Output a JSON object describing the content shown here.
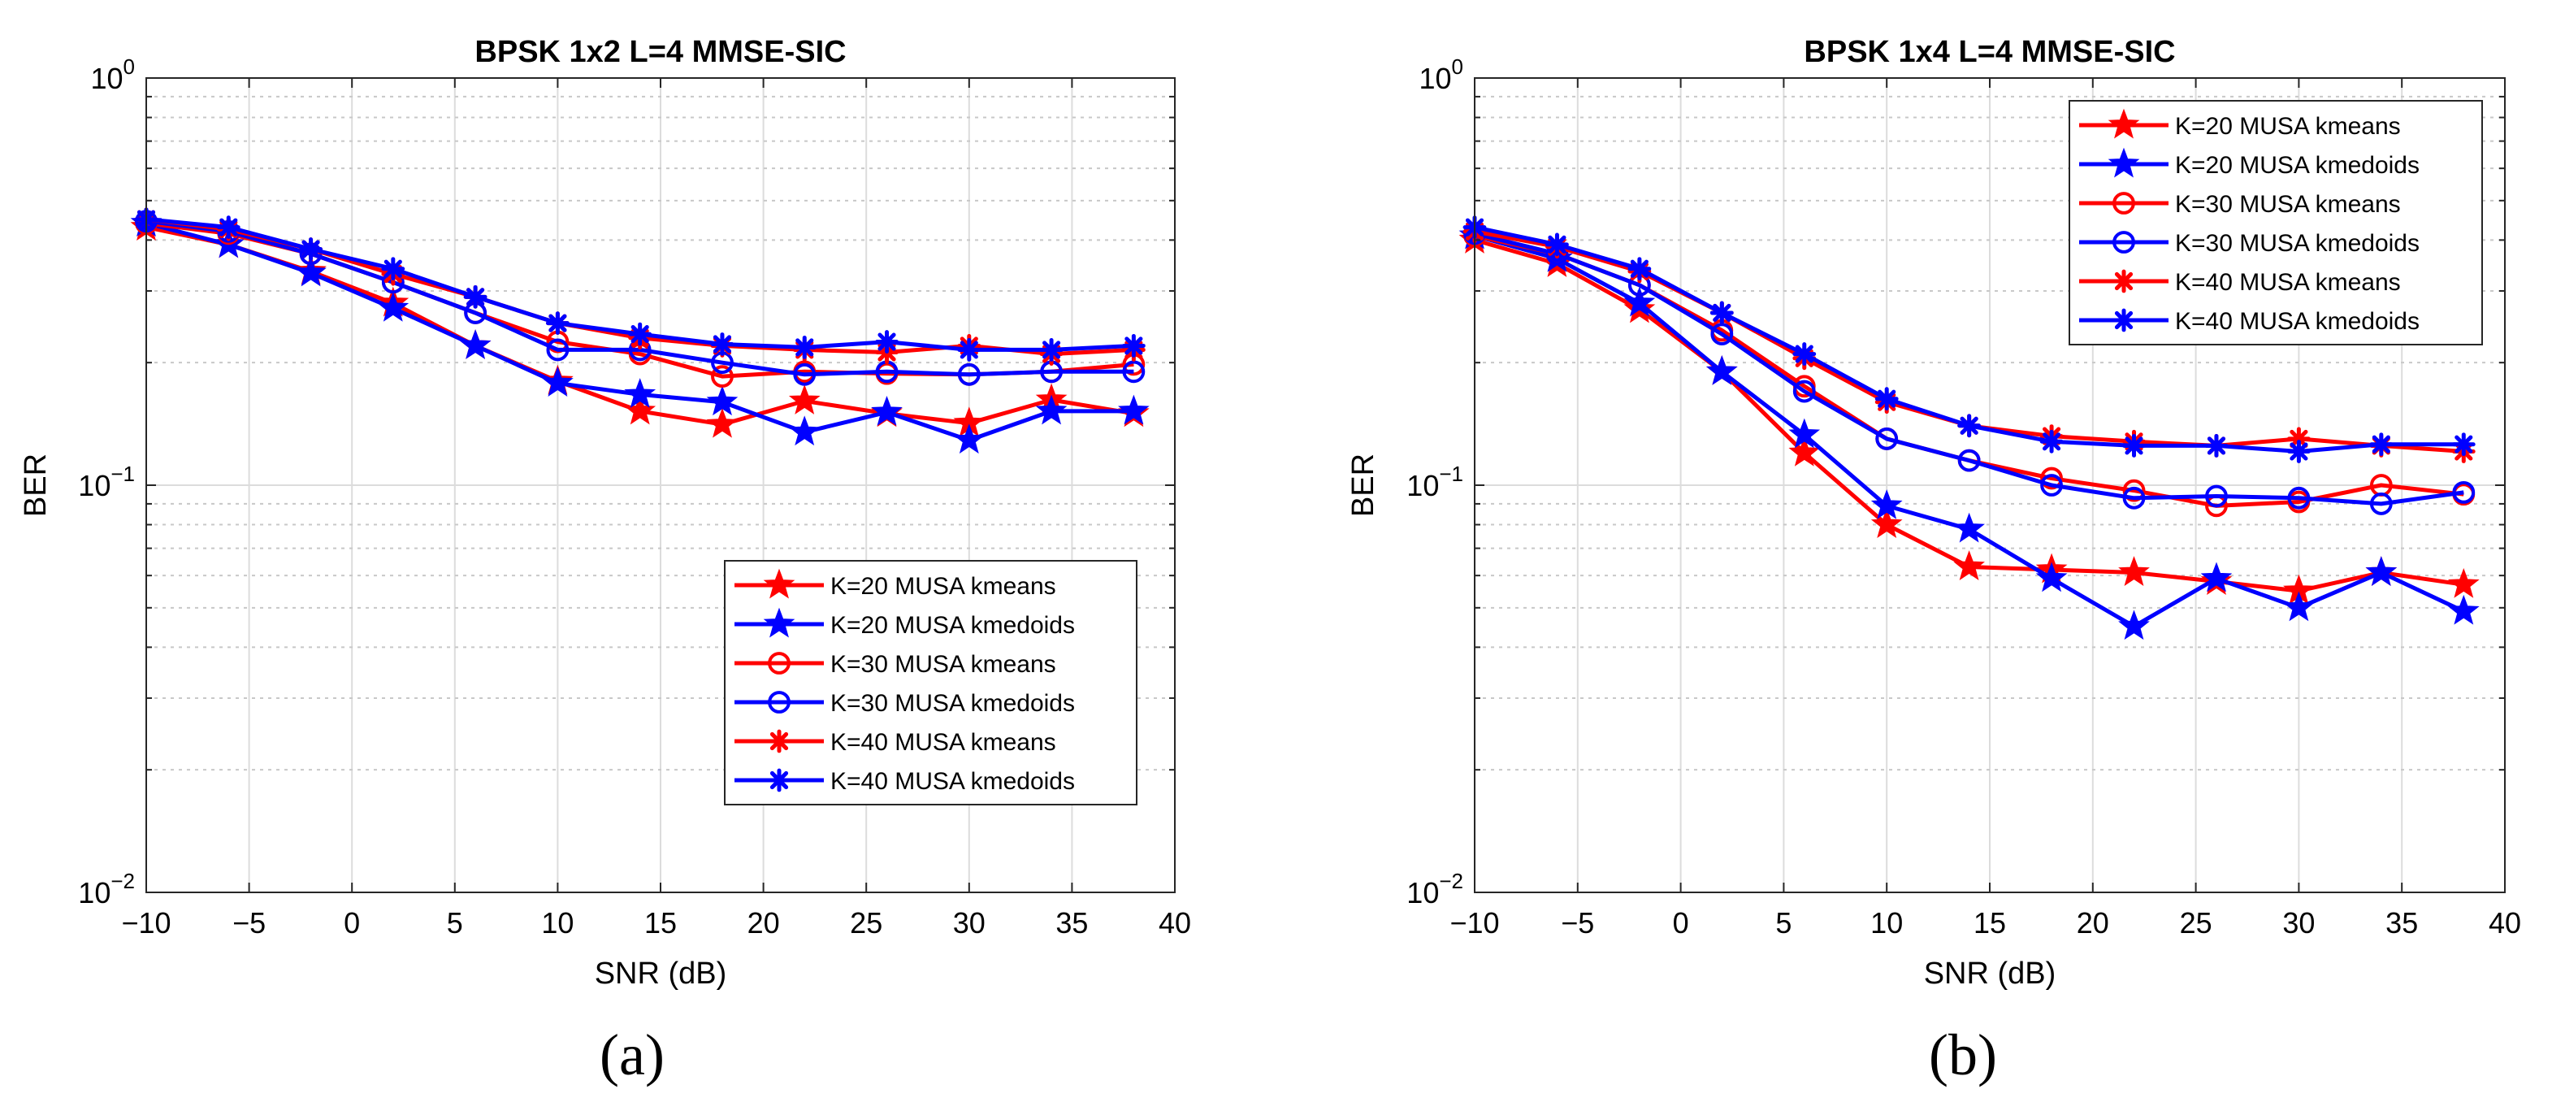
{
  "chart_data": [
    {
      "type": "line",
      "title": "BPSK 1x2 L=4 MMSE-SIC",
      "caption": "(a)",
      "xlabel": "SNR (dB)",
      "ylabel": "BER",
      "xlim": [
        -10,
        40
      ],
      "ylim": [
        0.01,
        1
      ],
      "yscale": "log",
      "grid": true,
      "legend_position": "bottom-right",
      "x_ticks": [
        -10,
        -5,
        0,
        5,
        10,
        15,
        20,
        25,
        30,
        35,
        40
      ],
      "x_tick_labels": [
        "−10",
        "−5",
        "0",
        "5",
        "10",
        "15",
        "20",
        "25",
        "30",
        "35",
        "40"
      ],
      "y_ticks": [
        0.01,
        0.1,
        1
      ],
      "y_tick_labels": [
        {
          "base": "10",
          "exp": "−2"
        },
        {
          "base": "10",
          "exp": "−1"
        },
        {
          "base": "10",
          "exp": "0"
        }
      ],
      "x": [
        -10,
        -6,
        -2,
        2,
        6,
        10,
        14,
        18,
        22,
        26,
        30,
        34,
        38
      ],
      "series": [
        {
          "name": "K=20 MUSA kmeans",
          "color": "#ff0000",
          "marker": "star",
          "values": [
            0.43,
            0.39,
            0.335,
            0.28,
            0.22,
            0.18,
            0.152,
            0.141,
            0.161,
            0.15,
            0.142,
            0.162,
            0.15
          ]
        },
        {
          "name": "K=20 MUSA kmedoids",
          "color": "#0000ff",
          "marker": "star",
          "values": [
            0.44,
            0.39,
            0.332,
            0.272,
            0.22,
            0.178,
            0.167,
            0.16,
            0.135,
            0.151,
            0.129,
            0.152,
            0.152
          ]
        },
        {
          "name": "K=30 MUSA kmeans",
          "color": "#ff0000",
          "marker": "circle",
          "values": [
            0.44,
            0.415,
            0.37,
            0.315,
            0.265,
            0.225,
            0.21,
            0.185,
            0.19,
            0.188,
            0.187,
            0.19,
            0.198
          ]
        },
        {
          "name": "K=30 MUSA kmedoids",
          "color": "#0000ff",
          "marker": "circle",
          "values": [
            0.445,
            0.42,
            0.37,
            0.315,
            0.265,
            0.215,
            0.215,
            0.2,
            0.187,
            0.19,
            0.187,
            0.19,
            0.19
          ]
        },
        {
          "name": "K=40 MUSA kmeans",
          "color": "#ff0000",
          "marker": "asterisk",
          "values": [
            0.45,
            0.425,
            0.38,
            0.33,
            0.29,
            0.25,
            0.23,
            0.22,
            0.215,
            0.212,
            0.22,
            0.21,
            0.215
          ]
        },
        {
          "name": "K=40 MUSA kmedoids",
          "color": "#0000ff",
          "marker": "asterisk",
          "values": [
            0.45,
            0.43,
            0.38,
            0.34,
            0.29,
            0.25,
            0.235,
            0.222,
            0.218,
            0.225,
            0.215,
            0.215,
            0.22
          ]
        }
      ]
    },
    {
      "type": "line",
      "title": "BPSK 1x4 L=4 MMSE-SIC",
      "caption": "(b)",
      "xlabel": "SNR (dB)",
      "ylabel": "BER",
      "xlim": [
        -10,
        40
      ],
      "ylim": [
        0.01,
        1
      ],
      "yscale": "log",
      "grid": true,
      "legend_position": "top-right",
      "x_ticks": [
        -10,
        -5,
        0,
        5,
        10,
        15,
        20,
        25,
        30,
        35,
        40
      ],
      "x_tick_labels": [
        "−10",
        "−5",
        "0",
        "5",
        "10",
        "15",
        "20",
        "25",
        "30",
        "35",
        "40"
      ],
      "y_ticks": [
        0.01,
        0.1,
        1
      ],
      "y_tick_labels": [
        {
          "base": "10",
          "exp": "−2"
        },
        {
          "base": "10",
          "exp": "−1"
        },
        {
          "base": "10",
          "exp": "0"
        }
      ],
      "x": [
        -10,
        -6,
        -2,
        2,
        6,
        10,
        14,
        18,
        22,
        26,
        30,
        34,
        38
      ],
      "series": [
        {
          "name": "K=20 MUSA kmeans",
          "color": "#ff0000",
          "marker": "star",
          "values": [
            0.4,
            0.35,
            0.27,
            0.19,
            0.12,
            0.08,
            0.063,
            0.062,
            0.061,
            0.058,
            0.055,
            0.061,
            0.057
          ]
        },
        {
          "name": "K=20 MUSA kmedoids",
          "color": "#0000ff",
          "marker": "star",
          "values": [
            0.41,
            0.36,
            0.28,
            0.19,
            0.133,
            0.089,
            0.078,
            0.059,
            0.045,
            0.059,
            0.05,
            0.061,
            0.049
          ]
        },
        {
          "name": "K=30 MUSA kmeans",
          "color": "#ff0000",
          "marker": "circle",
          "values": [
            0.41,
            0.37,
            0.31,
            0.24,
            0.175,
            0.13,
            0.115,
            0.104,
            0.097,
            0.089,
            0.091,
            0.1,
            0.095
          ]
        },
        {
          "name": "K=30 MUSA kmedoids",
          "color": "#0000ff",
          "marker": "circle",
          "values": [
            0.415,
            0.37,
            0.31,
            0.235,
            0.17,
            0.13,
            0.115,
            0.1,
            0.093,
            0.094,
            0.093,
            0.09,
            0.096
          ]
        },
        {
          "name": "K=40 MUSA kmeans",
          "color": "#ff0000",
          "marker": "asterisk",
          "values": [
            0.42,
            0.385,
            0.335,
            0.265,
            0.205,
            0.16,
            0.14,
            0.132,
            0.128,
            0.125,
            0.13,
            0.125,
            0.121
          ]
        },
        {
          "name": "K=40 MUSA kmedoids",
          "color": "#0000ff",
          "marker": "asterisk",
          "values": [
            0.43,
            0.39,
            0.34,
            0.265,
            0.21,
            0.163,
            0.14,
            0.128,
            0.125,
            0.125,
            0.121,
            0.126,
            0.126
          ]
        }
      ]
    }
  ]
}
